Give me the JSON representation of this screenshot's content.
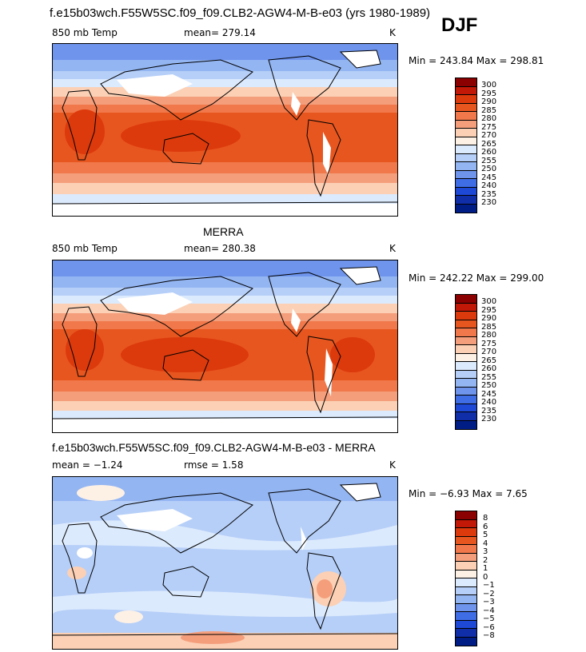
{
  "header": {
    "case_title": "f.e15b03wch.F55W5SC.f09_f09.CLB2-AGW4-M-B-e03 (yrs 1980-1989)",
    "season": "DJF"
  },
  "panels": [
    {
      "id": "model",
      "title": "",
      "left_label": "850 mb Temp",
      "center_label": "mean= 279.14",
      "right_label": "K",
      "minmax": "Min = 243.84 Max = 298.81",
      "levels": [
        "300",
        "295",
        "290",
        "285",
        "280",
        "275",
        "270",
        "265",
        "260",
        "255",
        "250",
        "245",
        "240",
        "235",
        "230"
      ],
      "colors": [
        "#8b0000",
        "#c21807",
        "#dc3a0c",
        "#e8561f",
        "#f0784a",
        "#f59e7c",
        "#fbd0b5",
        "#fdf1e6",
        "#dceafd",
        "#b6cff8",
        "#93b5f2",
        "#6e94ec",
        "#3f6de6",
        "#1e48d6",
        "#102ea8",
        "#001d85"
      ]
    },
    {
      "id": "obs",
      "title": "MERRA",
      "left_label": "850 mb Temp",
      "center_label": "mean= 280.38",
      "right_label": "K",
      "minmax": "Min = 242.22 Max = 299.00",
      "levels": [
        "300",
        "295",
        "290",
        "285",
        "280",
        "275",
        "270",
        "265",
        "260",
        "255",
        "250",
        "245",
        "240",
        "235",
        "230"
      ],
      "colors": [
        "#8b0000",
        "#c21807",
        "#dc3a0c",
        "#e8561f",
        "#f0784a",
        "#f59e7c",
        "#fbd0b5",
        "#fdf1e6",
        "#dceafd",
        "#b6cff8",
        "#93b5f2",
        "#6e94ec",
        "#3f6de6",
        "#1e48d6",
        "#102ea8",
        "#001d85"
      ]
    },
    {
      "id": "diff",
      "title": "f.e15b03wch.F55W5SC.f09_f09.CLB2-AGW4-M-B-e03 - MERRA",
      "left_label": "mean =  −1.24",
      "center_label": "rmse =   1.58",
      "right_label": "K",
      "minmax": "Min =  −6.93 Max =   7.65",
      "levels": [
        "8",
        "6",
        "5",
        "4",
        "3",
        "2",
        "1",
        "0",
        "−1",
        "−2",
        "−3",
        "−4",
        "−5",
        "−6",
        "−8"
      ],
      "colors": [
        "#8b0000",
        "#c21807",
        "#dc3a0c",
        "#e8561f",
        "#f0784a",
        "#f59e7c",
        "#fbd0b5",
        "#fdf1e6",
        "#dceafd",
        "#b6cff8",
        "#93b5f2",
        "#6e94ec",
        "#3f6de6",
        "#1e48d6",
        "#102ea8",
        "#001d85"
      ]
    }
  ]
}
